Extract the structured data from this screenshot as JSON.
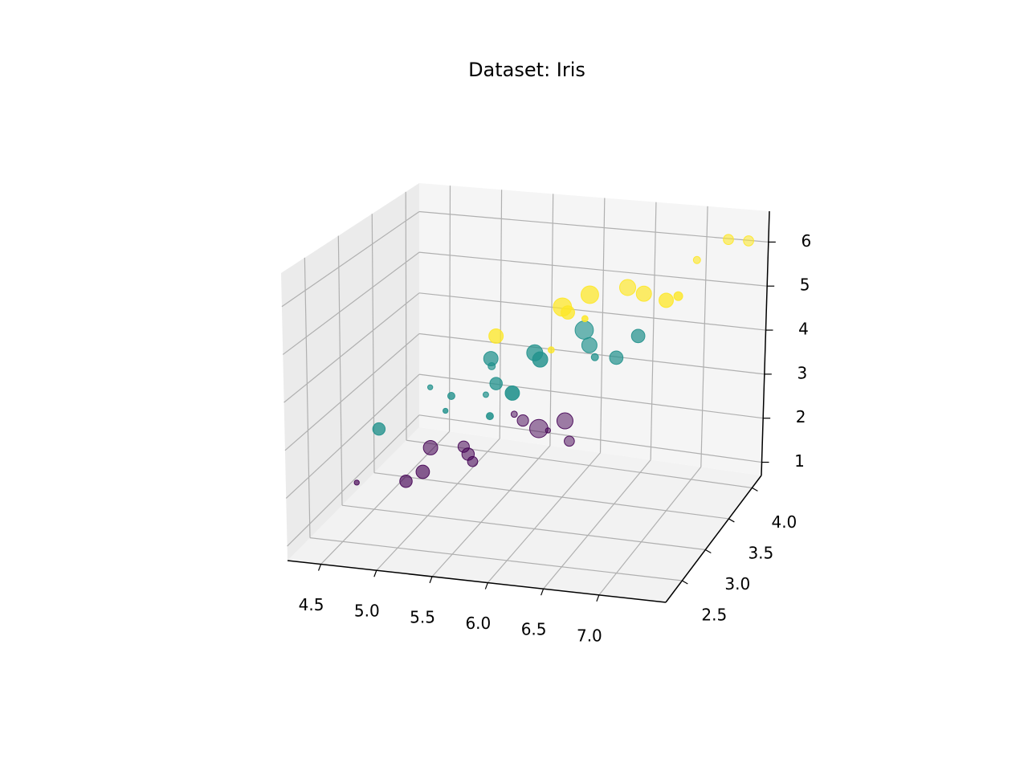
{
  "chart_data": {
    "type": "scatter3d",
    "title": "Dataset: Iris",
    "xlim": [
      4.2,
      7.6
    ],
    "ylim": [
      2.15,
      4.2
    ],
    "zlim": [
      0.7,
      6.7
    ],
    "xticks": [
      4.5,
      {
        "value": 5,
        "label": "5.0"
      },
      5.5,
      {
        "value": 6,
        "label": "6.0"
      },
      6.5,
      {
        "value": 7,
        "label": "7.0"
      }
    ],
    "yticks": [
      2.5,
      {
        "value": 3,
        "label": "3.0"
      },
      3.5,
      {
        "value": 4,
        "label": "4.0"
      }
    ],
    "zticks": [
      1,
      2,
      3,
      4,
      5,
      6
    ],
    "grid": true,
    "series": [
      {
        "color": "#440154",
        "x": [
          4.4,
          4.8,
          4.9,
          4.8,
          5.0,
          5.1,
          5.2,
          5.4,
          5.7,
          5.8,
          5.5,
          5.7,
          5.2
        ],
        "y": [
          2.9,
          3.0,
          3.1,
          3.4,
          3.6,
          3.5,
          3.4,
          3.9,
          4.1,
          4.0,
          4.0,
          3.8,
          4.1
        ],
        "z": [
          1.4,
          1.4,
          1.5,
          1.6,
          1.4,
          1.4,
          1.4,
          1.7,
          1.5,
          1.2,
          1.4,
          1.7,
          1.5
        ],
        "sizes": [
          10,
          60,
          70,
          80,
          50,
          60,
          40,
          50,
          100,
          40,
          130,
          10,
          15
        ]
      },
      {
        "color": "#21918c",
        "x": [
          4.9,
          5.2,
          5.5,
          5.6,
          5.7,
          5.5,
          5.8,
          6.0,
          6.1,
          6.2,
          6.3,
          6.4,
          6.6,
          6.7,
          6.9,
          6.3,
          5.6
        ],
        "y": [
          2.4,
          2.7,
          2.4,
          2.9,
          2.8,
          2.5,
          2.7,
          2.2,
          2.8,
          2.2,
          3.3,
          3.2,
          2.9,
          3.1,
          3.1,
          2.5,
          3.0
        ],
        "z": [
          3.3,
          3.9,
          3.8,
          3.6,
          4.5,
          4.0,
          4.1,
          4.0,
          4.7,
          4.5,
          4.7,
          4.5,
          4.6,
          4.4,
          4.9,
          4.9,
          4.1
        ],
        "sizes": [
          60,
          10,
          10,
          12,
          80,
          20,
          60,
          20,
          100,
          80,
          130,
          90,
          20,
          70,
          70,
          90,
          20
        ]
      },
      {
        "color": "#fde725",
        "x": [
          5.8,
          6.3,
          6.5,
          7.4,
          6.7,
          7.2,
          6.9,
          7.2,
          7.5,
          7.4,
          6.4,
          6.3,
          6.7
        ],
        "y": [
          2.7,
          2.9,
          3.0,
          3.8,
          3.3,
          3.6,
          3.2,
          3.0,
          4.0,
          2.8,
          2.8,
          2.7,
          2.5
        ],
        "z": [
          5.1,
          5.6,
          5.8,
          6.4,
          5.7,
          6.1,
          5.7,
          5.8,
          6.2,
          6.1,
          5.6,
          4.9,
          5.8
        ],
        "sizes": [
          80,
          130,
          120,
          40,
          100,
          20,
          90,
          80,
          40,
          30,
          70,
          15,
          15
        ]
      }
    ]
  }
}
